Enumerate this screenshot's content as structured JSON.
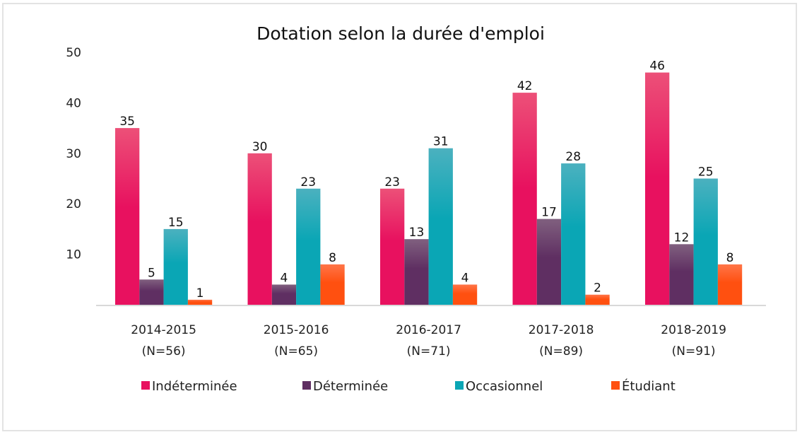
{
  "chart_data": {
    "type": "bar",
    "title": "Dotation selon la durée d'emploi",
    "xlabel": "",
    "ylabel": "",
    "ylim": [
      0,
      50
    ],
    "yticks": [
      10,
      20,
      30,
      40,
      50
    ],
    "grid": false,
    "legend_position": "bottom",
    "categories": [
      {
        "line1": "2014-2015",
        "line2": "(N=56)"
      },
      {
        "line1": "2015-2016",
        "line2": "(N=65)"
      },
      {
        "line1": "2016-2017",
        "line2": "(N=71)"
      },
      {
        "line1": "2017-2018",
        "line2": "(N=89)"
      },
      {
        "line1": "2018-2019",
        "line2": "(N=91)"
      }
    ],
    "series": [
      {
        "name": "Indéterminée",
        "color": "#e8115f",
        "color_top": "#ec5078",
        "values": [
          35,
          30,
          23,
          42,
          46
        ]
      },
      {
        "name": "Déterminée",
        "color": "#5f2f62",
        "color_top": "#80607f",
        "values": [
          5,
          4,
          13,
          17,
          12
        ]
      },
      {
        "name": "Occasionnel",
        "color": "#0aa6b5",
        "color_top": "#4bb1bf",
        "values": [
          15,
          23,
          31,
          28,
          25
        ]
      },
      {
        "name": "Étudiant",
        "color": "#ff5010",
        "color_top": "#ff7548",
        "values": [
          1,
          8,
          4,
          2,
          8
        ]
      }
    ]
  }
}
